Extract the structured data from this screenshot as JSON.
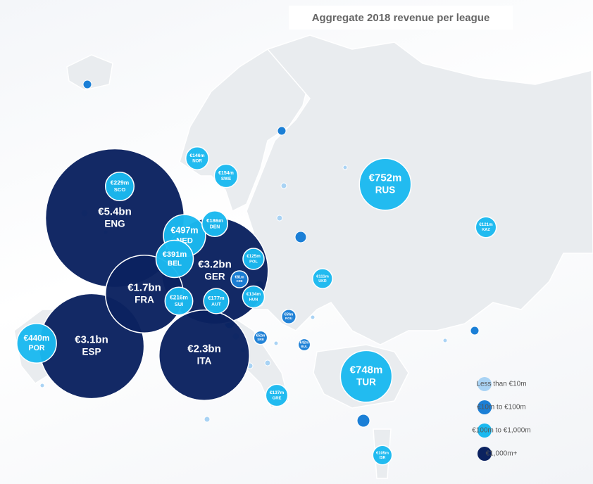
{
  "title": "Aggregate 2018 revenue per league",
  "legend": [
    {
      "label": "Less than €10m",
      "color": "#a9d3f4"
    },
    {
      "label": "€10m to €100m",
      "color": "#1b7fd6"
    },
    {
      "label": "€100m to €1,000m",
      "color": "#1bb9f0"
    },
    {
      "label": "€1,000m+",
      "color": "#0b2260"
    }
  ],
  "bubbles": [
    {
      "value": 5400,
      "label": "€5.4bn",
      "code": "ENG",
      "color": "#0b2260"
    },
    {
      "value": 3200,
      "label": "€3.2bn",
      "code": "GER",
      "color": "#0b2260"
    },
    {
      "value": 3100,
      "label": "€3.1bn",
      "code": "ESP",
      "color": "#0b2260"
    },
    {
      "value": 2300,
      "label": "€2.3bn",
      "code": "ITA",
      "color": "#0b2260"
    },
    {
      "value": 1700,
      "label": "€1.7bn",
      "code": "FRA",
      "color": "#0b2260"
    },
    {
      "value": 752,
      "label": "€752m",
      "code": "RUS",
      "color": "#1bb9f0"
    },
    {
      "value": 748,
      "label": "€748m",
      "code": "TUR",
      "color": "#1bb9f0"
    },
    {
      "value": 497,
      "label": "€497m",
      "code": "NED",
      "color": "#1bb9f0"
    },
    {
      "value": 440,
      "label": "€440m",
      "code": "POR",
      "color": "#1bb9f0"
    },
    {
      "value": 391,
      "label": "€391m",
      "code": "BEL",
      "color": "#1bb9f0"
    },
    {
      "value": 229,
      "label": "€229m",
      "code": "SCO",
      "color": "#1bb9f0"
    },
    {
      "value": 216,
      "label": "€216m",
      "code": "SUI",
      "color": "#1bb9f0"
    },
    {
      "value": 186,
      "label": "€186m",
      "code": "DEN",
      "color": "#1bb9f0"
    },
    {
      "value": 177,
      "label": "€177m",
      "code": "AUT",
      "color": "#1bb9f0"
    },
    {
      "value": 154,
      "label": "€154m",
      "code": "SWE",
      "color": "#1bb9f0"
    },
    {
      "value": 146,
      "label": "€146m",
      "code": "NOR",
      "color": "#1bb9f0"
    },
    {
      "value": 137,
      "label": "€137m",
      "code": "GRE",
      "color": "#1bb9f0"
    },
    {
      "value": 134,
      "label": "€134m",
      "code": "HUN",
      "color": "#1bb9f0"
    },
    {
      "value": 125,
      "label": "€125m",
      "code": "POL",
      "color": "#1bb9f0"
    },
    {
      "value": 121,
      "label": "€121m",
      "code": "KAZ",
      "color": "#1bb9f0"
    },
    {
      "value": 111,
      "label": "€111m",
      "code": "UKR",
      "color": "#1bb9f0"
    },
    {
      "value": 105,
      "label": "€105m",
      "code": "ISR",
      "color": "#1bb9f0"
    },
    {
      "value": 81,
      "label": "€81m",
      "code": "CZE",
      "color": "#1b7fd6"
    },
    {
      "value": 59,
      "label": "€59m",
      "code": "ROU",
      "color": "#1b7fd6"
    },
    {
      "value": 52,
      "label": "€52m",
      "code": "SRB",
      "color": "#1b7fd6"
    },
    {
      "value": 42,
      "label": "€42m",
      "code": "BUL",
      "color": "#1b7fd6"
    }
  ]
}
